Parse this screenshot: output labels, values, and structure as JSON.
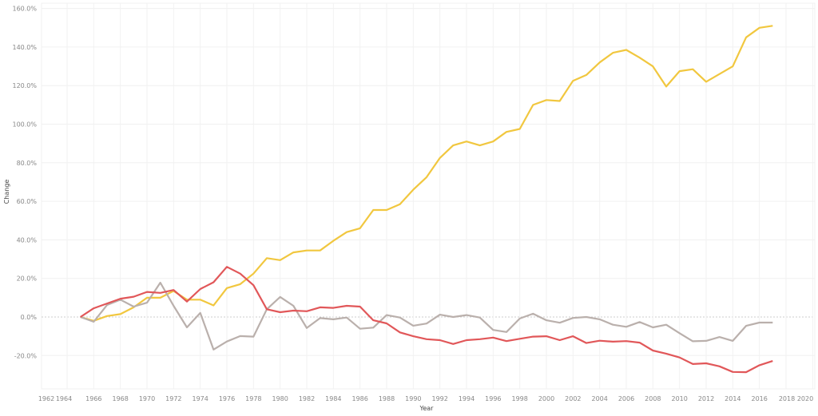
{
  "chart_data": {
    "type": "line",
    "title": "",
    "xlabel": "Year",
    "ylabel": "Change",
    "xlim": [
      1962,
      2020
    ],
    "ylim": [
      -35,
      160
    ],
    "grid": true,
    "legend": "none",
    "x_ticks": [
      "1962",
      "1964",
      "1966",
      "1968",
      "1970",
      "1972",
      "1974",
      "1976",
      "1978",
      "1980",
      "1982",
      "1984",
      "1986",
      "1988",
      "1990",
      "1992",
      "1994",
      "1996",
      "1998",
      "2000",
      "2002",
      "2004",
      "2006",
      "2008",
      "2010",
      "2012",
      "2014",
      "2016",
      "2018",
      "2020"
    ],
    "y_ticks": [
      "160.0%",
      "140.0%",
      "120.0%",
      "100.0%",
      "80.0%",
      "60.0%",
      "40.0%",
      "20.0%",
      "0.0%",
      "-20.0%"
    ],
    "x": [
      1965,
      1966,
      1967,
      1968,
      1969,
      1970,
      1971,
      1972,
      1973,
      1974,
      1975,
      1976,
      1977,
      1978,
      1979,
      1980,
      1981,
      1982,
      1983,
      1984,
      1985,
      1986,
      1987,
      1988,
      1989,
      1990,
      1991,
      1992,
      1993,
      1994,
      1995,
      1996,
      1997,
      1998,
      1999,
      2000,
      2001,
      2002,
      2003,
      2004,
      2005,
      2006,
      2007,
      2008,
      2009,
      2010,
      2011,
      2012,
      2013,
      2014,
      2015,
      2016,
      2017
    ],
    "series": [
      {
        "color": "#F1C73F",
        "values": [
          0,
          -2,
          0.5,
          1.5,
          5,
          10,
          10,
          13.5,
          9,
          9,
          6,
          15,
          17,
          22.5,
          30.5,
          29.5,
          33.5,
          34.5,
          34.5,
          39.5,
          44,
          46,
          55.5,
          55.5,
          58.5,
          66,
          72.5,
          82.5,
          89,
          91,
          89,
          91,
          96,
          97.5,
          110,
          112.5,
          112,
          122.5,
          125.5,
          132,
          137,
          138.5,
          134.5,
          130,
          119.5,
          127.5,
          128.5,
          122,
          126,
          130,
          145,
          150,
          151
        ]
      },
      {
        "color": "#BAB0AC",
        "values": [
          0,
          -2.5,
          6.2,
          9,
          5.4,
          7.4,
          17.8,
          5.8,
          -5.4,
          2.1,
          -16.9,
          -12.7,
          -9.9,
          -10.2,
          4,
          10.4,
          5.8,
          -5.7,
          -0.6,
          -1.2,
          -0.3,
          -6.1,
          -5.5,
          1,
          -0.3,
          -4.5,
          -3.4,
          1.2,
          0,
          1,
          -0.3,
          -6.7,
          -7.8,
          -0.8,
          1.7,
          -1.7,
          -3,
          -0.5,
          0,
          -1.2,
          -4,
          -5.1,
          -2.6,
          -5.4,
          -4,
          -8.4,
          -12.6,
          -12.4,
          -10.4,
          -12.4,
          -4.6,
          -2.9,
          -2.9
        ]
      },
      {
        "color": "#E15759",
        "values": [
          0,
          4.5,
          7,
          9.5,
          10.5,
          13,
          12.5,
          14,
          8,
          14.5,
          18,
          26,
          22.5,
          16.5,
          4,
          2.5,
          3.3,
          3,
          5,
          4.7,
          5.8,
          5.4,
          -1.7,
          -3.3,
          -8,
          -10,
          -11.5,
          -12,
          -14,
          -12,
          -11.5,
          -10.7,
          -12.5,
          -11.3,
          -10.2,
          -10,
          -12,
          -10,
          -13.5,
          -12.3,
          -12.8,
          -12.5,
          -13.3,
          -17.4,
          -19,
          -21,
          -24.4,
          -24,
          -25.6,
          -28.5,
          -28.6,
          -25,
          -22.8
        ]
      }
    ]
  }
}
